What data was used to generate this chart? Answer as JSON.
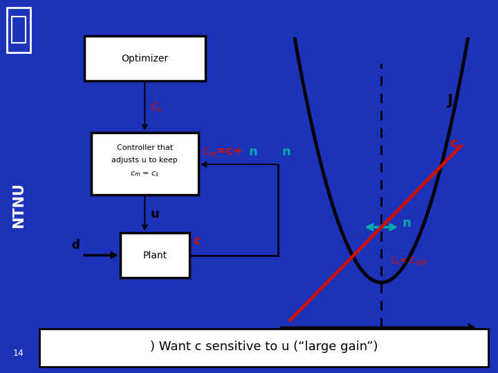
{
  "bg_color": "#1c32b8",
  "slide_bg": "#ffffff",
  "ntnu_blue": "#1c32b8",
  "title_number": "14",
  "bottom_text": ") Want c sensitive to u (“large gain”)",
  "optimizer_label": "Optimizer",
  "controller_label": "Controller that\nadjusts u to keep\n$c_m$ = $c_s$",
  "plant_label": "Plant",
  "red_color": "#cc1100",
  "cyan_color": "#00aaaa",
  "black_color": "#000000"
}
